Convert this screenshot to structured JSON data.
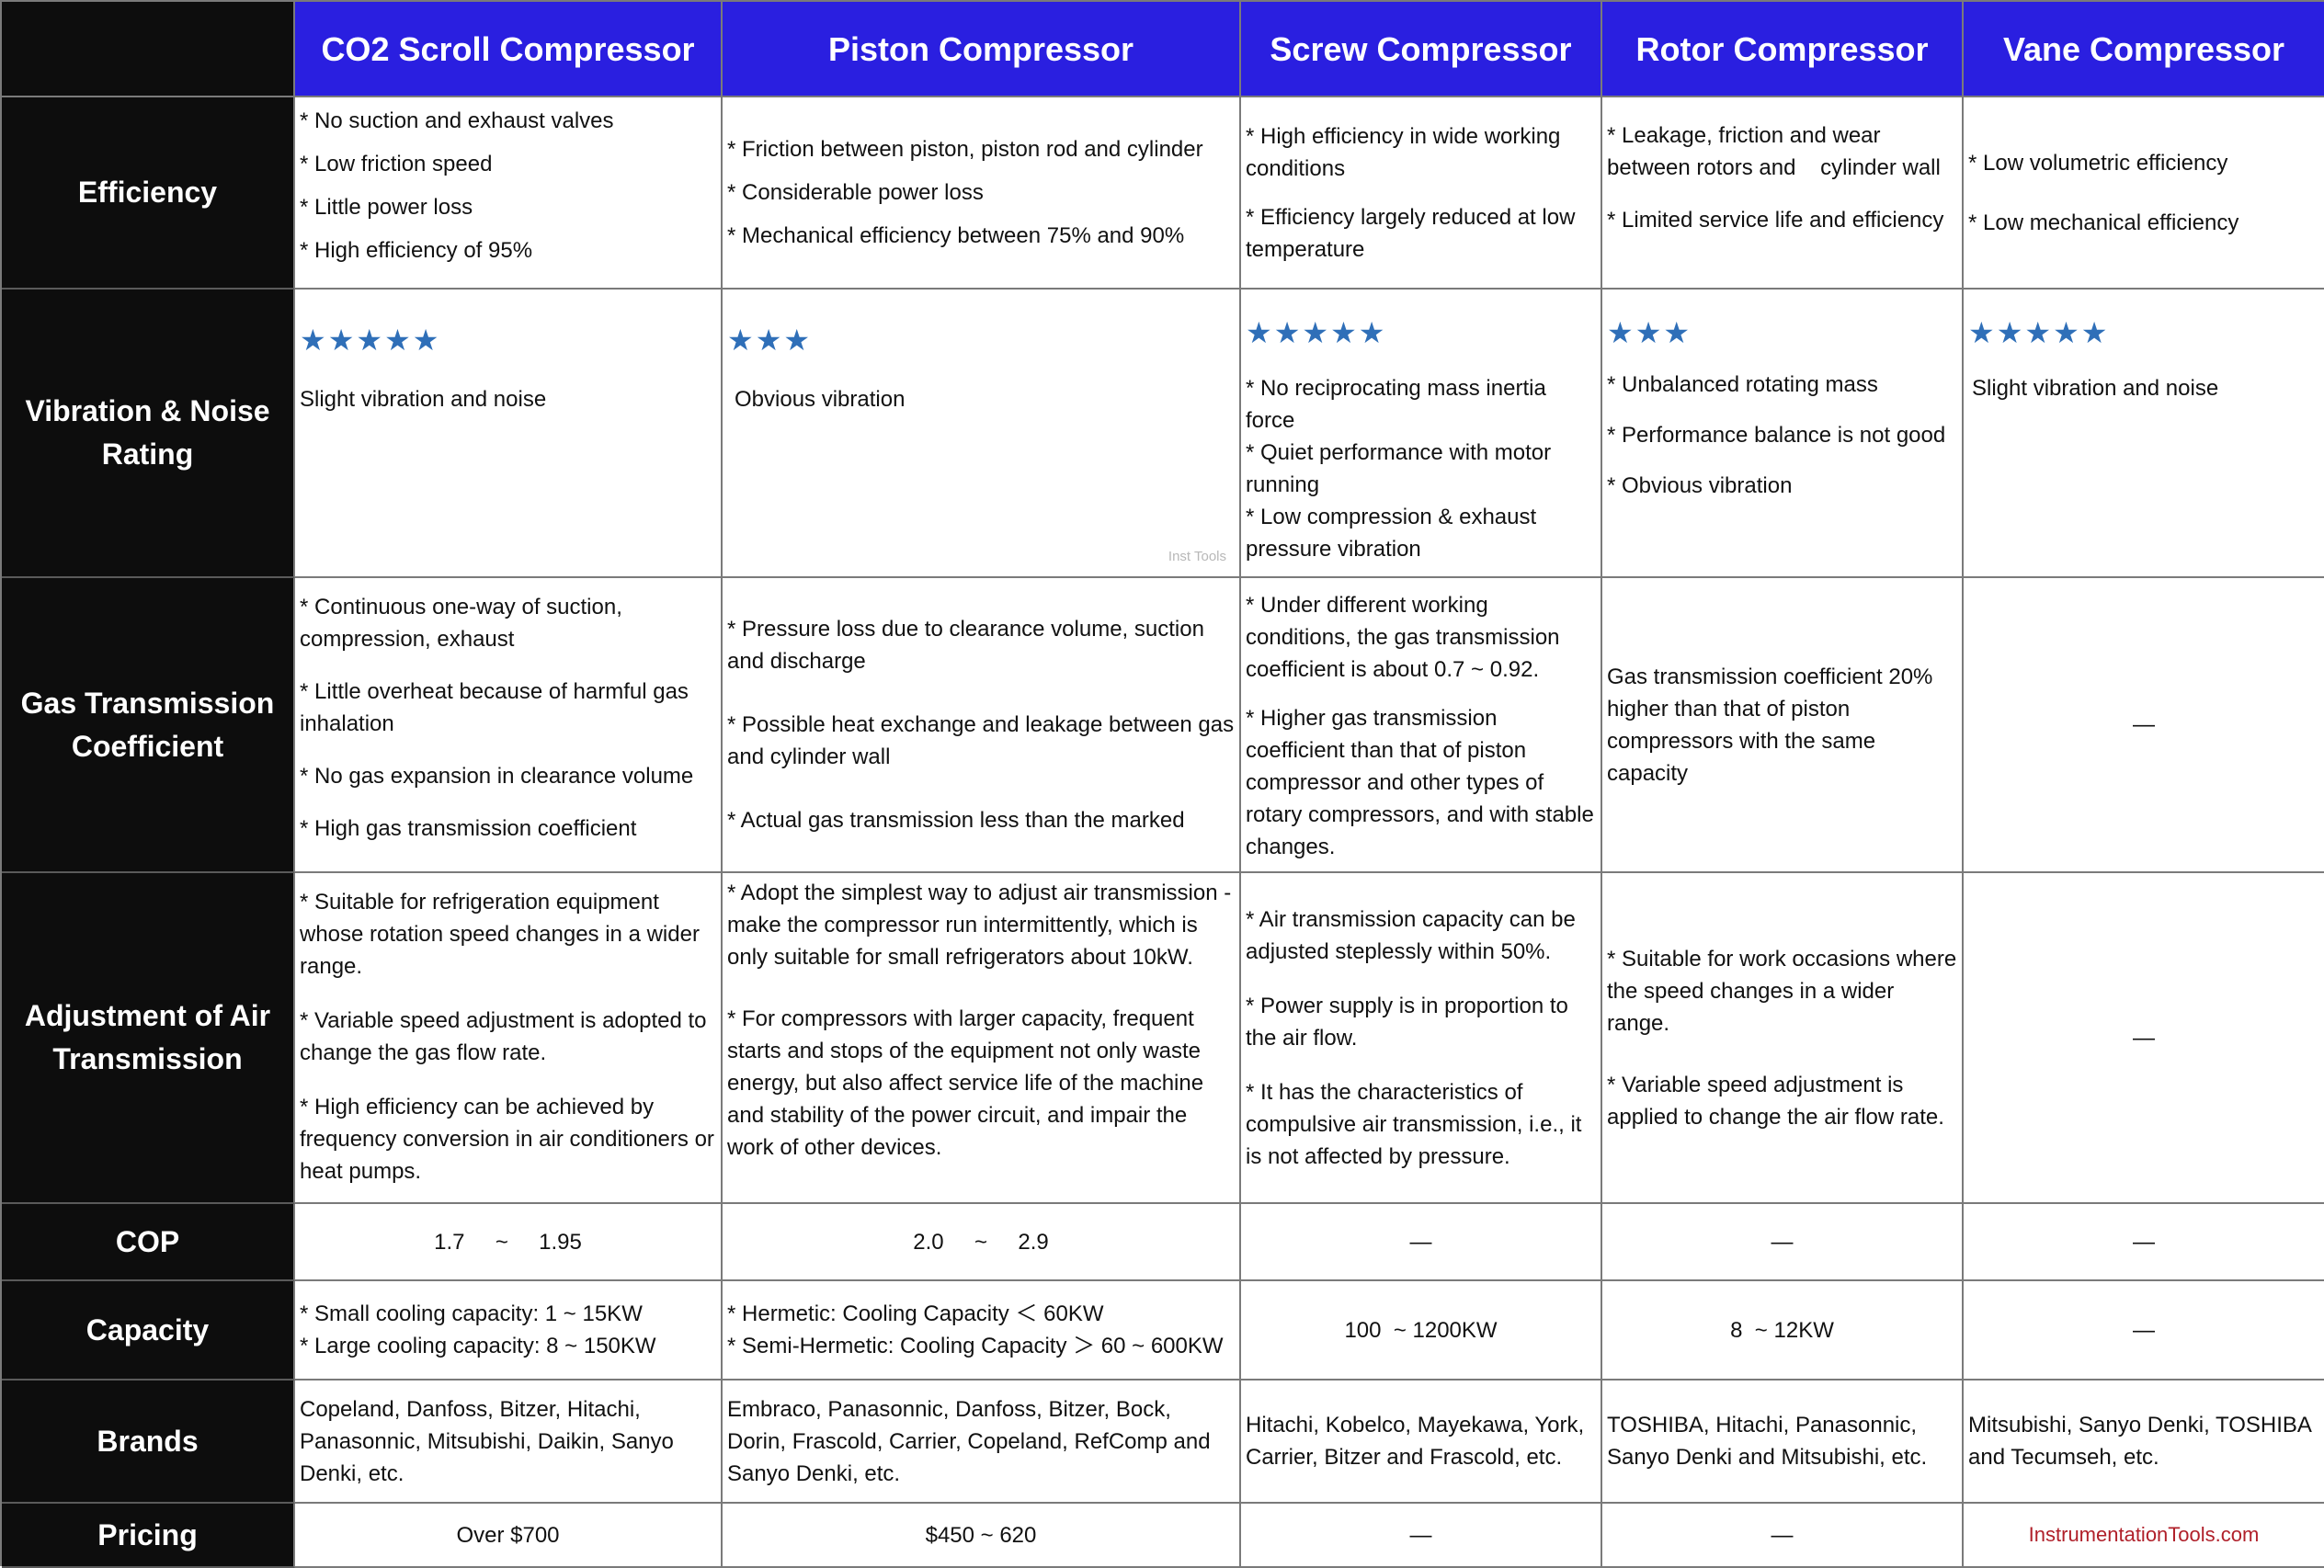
{
  "header": {
    "corner": "",
    "columns": [
      "CO2 Scroll Compressor",
      "Piston Compressor",
      "Screw Compressor",
      "Rotor Compressor",
      "Vane Compressor"
    ]
  },
  "rows": {
    "efficiency": {
      "label": "Efficiency",
      "scroll": [
        "* No suction and exhaust valves",
        "* Low friction speed",
        "* Little power loss",
        "* High efficiency of 95%"
      ],
      "piston": [
        "* Friction between piston, piston rod and cylinder",
        "* Considerable power loss",
        "* Mechanical efficiency between 75% and 90%"
      ],
      "screw": [
        "* High efficiency in wide working conditions",
        "* Efficiency largely reduced at low temperature"
      ],
      "rotor": [
        "* Leakage, friction and wear between rotors and    cylinder wall",
        "* Limited service life and efficiency"
      ],
      "vane": [
        "* Low volumetric efficiency",
        "* Low mechanical efficiency"
      ]
    },
    "vibration": {
      "label": "Vibration & Noise Rating",
      "scroll": {
        "rating": 5,
        "stars": "★★★★★",
        "lines": [
          "Slight vibration and noise"
        ]
      },
      "piston": {
        "rating": 3,
        "stars": "★★★",
        "lines": [
          "Obvious vibration"
        ],
        "watermark": "Inst Tools"
      },
      "screw": {
        "rating": 5,
        "stars": "★★★★★",
        "lines": [
          "* No reciprocating mass inertia force",
          "* Quiet performance with motor running",
          "* Low compression & exhaust pressure vibration"
        ]
      },
      "rotor": {
        "rating": 3,
        "stars": "★★★",
        "lines": [
          "* Unbalanced rotating mass",
          "* Performance balance is not good",
          "* Obvious vibration"
        ]
      },
      "vane": {
        "rating": 5,
        "stars": "★★★★★",
        "lines": [
          "Slight vibration and noise"
        ]
      }
    },
    "gas": {
      "label": "Gas Transmission Coefficient",
      "scroll": [
        "* Continuous one-way of suction, compression, exhaust",
        "* Little overheat because of harmful gas inhalation",
        "* No gas expansion in clearance volume",
        "* High gas transmission coefficient"
      ],
      "piston": [
        "* Pressure loss due to clearance volume, suction and discharge",
        "* Possible heat exchange and leakage between gas and cylinder wall",
        "* Actual gas transmission less than the marked"
      ],
      "screw": [
        "* Under different working conditions, the gas transmission coefficient is about 0.7 ~ 0.92.",
        "* Higher gas transmission coefficient than that of piston compressor and other types of rotary compressors, and with stable changes."
      ],
      "rotor": [
        "Gas transmission coefficient 20% higher than that of piston compressors with the same capacity"
      ],
      "vane": "—"
    },
    "adjustment": {
      "label": "Adjustment of Air Transmission",
      "scroll": [
        "* Suitable for refrigeration equipment whose rotation speed changes in a wider range.",
        "* Variable speed adjustment is adopted to change the gas flow rate.",
        "* High efficiency can be achieved by frequency conversion in air conditioners or heat pumps."
      ],
      "piston": [
        "* Adopt the simplest way to adjust air transmission - make the compressor run intermittently, which is only suitable for small refrigerators about 10kW.",
        "* For compressors with larger capacity, frequent starts and stops of the equipment not only waste energy, but also affect service life of the machine and stability of the power circuit, and impair the work of other devices."
      ],
      "screw": [
        "* Air transmission capacity can be adjusted steplessly within 50%.",
        "* Power supply is in proportion to the air flow.",
        "* It has the characteristics of compulsive air transmission, i.e., it is not affected by pressure."
      ],
      "rotor": [
        "* Suitable for work occasions where the speed changes in a wider range.",
        "* Variable speed adjustment is applied to change the air flow rate."
      ],
      "vane": "—"
    },
    "cop": {
      "label": "COP",
      "scroll": "1.7     ~     1.95",
      "piston": "2.0     ~     2.9",
      "screw": "—",
      "rotor": "—",
      "vane": "—"
    },
    "capacity": {
      "label": "Capacity",
      "scroll": [
        "* Small cooling capacity: 1 ~ 15KW",
        "* Large cooling capacity: 8 ~ 150KW"
      ],
      "piston": [
        "* Hermetic: Cooling Capacity ＜ 60KW",
        "* Semi-Hermetic: Cooling Capacity ＞ 60 ~ 600KW"
      ],
      "screw": "100  ~ 1200KW",
      "rotor": "8  ~ 12KW",
      "vane": "—"
    },
    "brands": {
      "label": "Brands",
      "scroll": "Copeland, Danfoss, Bitzer, Hitachi, Panasonnic, Mitsubishi, Daikin, Sanyo Denki, etc.",
      "piston": "Embraco, Panasonnic, Danfoss, Bitzer, Bock, Dorin, Frascold, Carrier, Copeland, RefComp and Sanyo Denki, etc.",
      "screw": "Hitachi, Kobelco, Mayekawa, York, Carrier, Bitzer and Frascold, etc.",
      "rotor": "TOSHIBA, Hitachi, Panasonnic, Sanyo Denki and Mitsubishi, etc.",
      "vane": "Mitsubishi, Sanyo Denki, TOSHIBA and Tecumseh, etc."
    },
    "pricing": {
      "label": "Pricing",
      "scroll": "Over $700",
      "piston": "$450 ~ 620",
      "screw": "—",
      "rotor": "—",
      "vane": ""
    }
  },
  "credit": "InstrumentationTools.com",
  "colors": {
    "header_bg": "#2a1fe0",
    "rowhead_bg": "#0d0d0d",
    "star": "#2f6fb8",
    "credit": "#b0202a"
  }
}
